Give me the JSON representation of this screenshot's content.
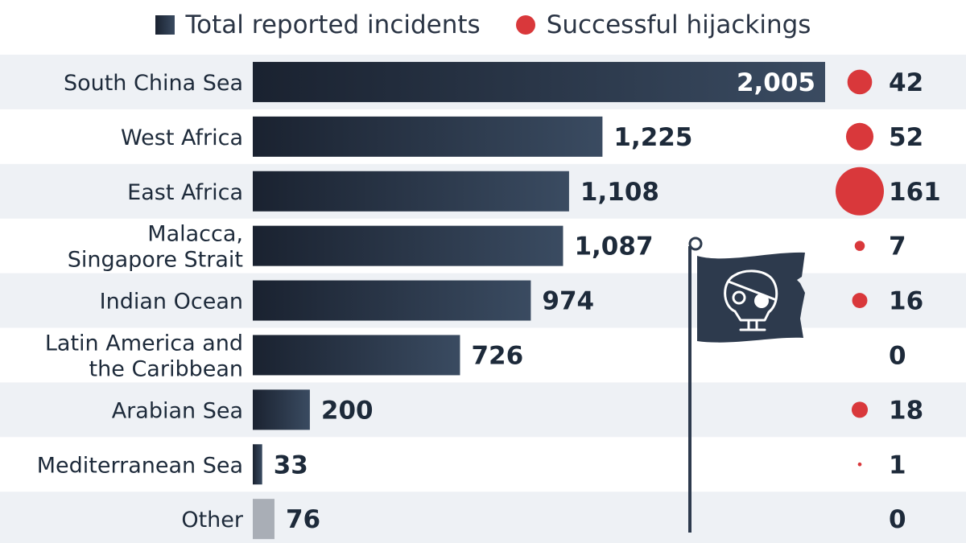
{
  "chart_data": {
    "type": "bar",
    "orientation": "horizontal",
    "title": "",
    "legend": {
      "placement": "top-center",
      "entries": [
        "Total reported incidents",
        "Successful hijackings"
      ]
    },
    "categories": [
      [
        "South China Sea"
      ],
      [
        "West Africa"
      ],
      [
        "East Africa"
      ],
      [
        "Malacca,",
        "Singapore Strait"
      ],
      [
        "Indian Ocean"
      ],
      [
        "Latin America and",
        "the Caribbean"
      ],
      [
        "Arabian Sea"
      ],
      [
        "Mediterranean Sea"
      ],
      [
        "Other"
      ]
    ],
    "series": [
      {
        "name": "Total reported incidents",
        "values": [
          2005,
          1225,
          1108,
          1087,
          974,
          726,
          200,
          33,
          76
        ],
        "labels": [
          "2,005",
          "1,225",
          "1,108",
          "1,087",
          "974",
          "726",
          "200",
          "33",
          "76"
        ],
        "color": "#2b3a4e"
      },
      {
        "name": "Successful hijackings",
        "values": [
          42,
          52,
          161,
          7,
          16,
          0,
          18,
          1,
          0
        ],
        "labels": [
          "42",
          "52",
          "161",
          "7",
          "16",
          "0",
          "18",
          "1",
          "0"
        ],
        "color": "#d9383b",
        "encoding": "bubble-size"
      }
    ],
    "xlim": [
      0,
      2005
    ],
    "grid": false,
    "colors": {
      "bar_dark": "#1a2230",
      "bar_light": "#3a4b61",
      "bar_other": "#a9aeb6",
      "dot": "#d9383b",
      "stripe": "#eef1f5",
      "flag": "#2d3a4d"
    },
    "decoration": "pirate-flag-icon"
  }
}
